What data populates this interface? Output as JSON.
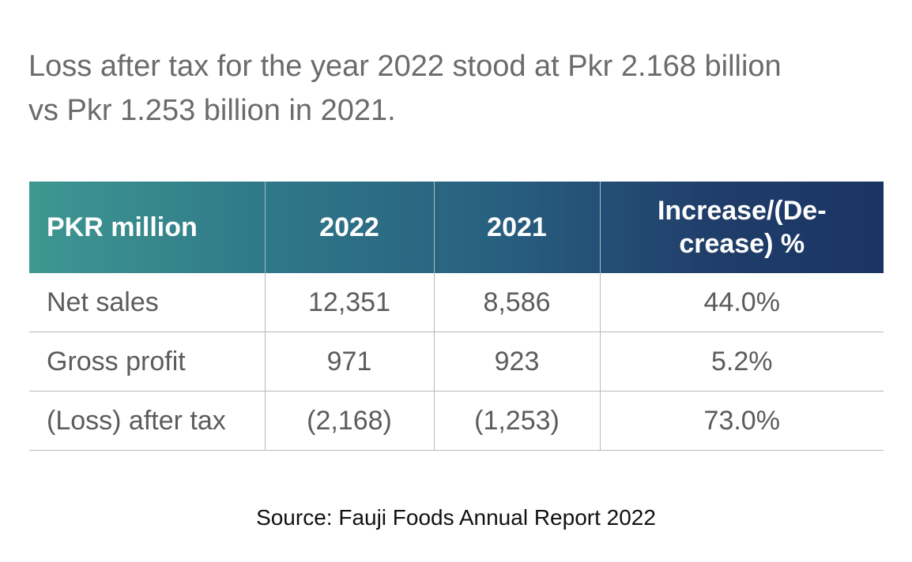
{
  "headline": {
    "line1": "Loss after tax for the year 2022 stood at Pkr 2.168 billion",
    "line2": "vs Pkr 1.253 billion in 2021."
  },
  "table": {
    "headers": [
      "PKR million",
      "2022",
      "2021",
      "Increase/(De-crease) %"
    ],
    "rows": [
      [
        "Net sales",
        "12,351",
        "8,586",
        "44.0%"
      ],
      [
        "Gross profit",
        "971",
        "923",
        "5.2%"
      ],
      [
        "(Loss) after tax",
        "(2,168)",
        "(1,253)",
        "73.0%"
      ]
    ]
  },
  "source": "Source: Fauji Foods Annual Report 2022",
  "colors": {
    "header_gradient_start": "#3e9791",
    "header_gradient_end": "#1a3463",
    "headline_text": "#6b6b6b",
    "cell_text": "#5c5c5c"
  }
}
